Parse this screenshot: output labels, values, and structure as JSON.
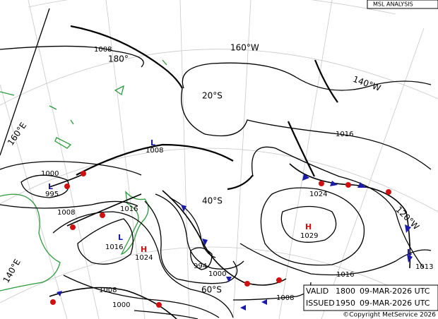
{
  "header": {
    "title": "MSL ANALYSIS"
  },
  "grid_labels": [
    "160°W",
    "180°",
    "140°W",
    "20°S",
    "160°E",
    "40°S",
    "120°W",
    "140°E",
    "60°S"
  ],
  "isobar_labels": [
    "1008",
    "1016",
    "1000",
    "1024",
    "1008",
    "1016",
    "994",
    "1000",
    "1016",
    "1008",
    "1000",
    "1008"
  ],
  "pressure_centers": [
    {
      "symbol": "L",
      "pressure": "1008"
    },
    {
      "symbol": "L",
      "pressure": "995"
    },
    {
      "symbol": "H",
      "pressure": "1029"
    },
    {
      "symbol": "L",
      "pressure": "1016"
    },
    {
      "symbol": "H",
      "pressure": "1024"
    },
    {
      "symbol": "L",
      "pressure": "1013"
    }
  ],
  "info": {
    "valid": {
      "label": "VALID",
      "time": "1800",
      "date": "09-MAR-2026 UTC"
    },
    "issued": {
      "label": "ISSUED",
      "time": "1950",
      "date": "09-MAR-2026 UTC"
    }
  },
  "footer": {
    "copyright": "©Copyright MetService 2026"
  }
}
